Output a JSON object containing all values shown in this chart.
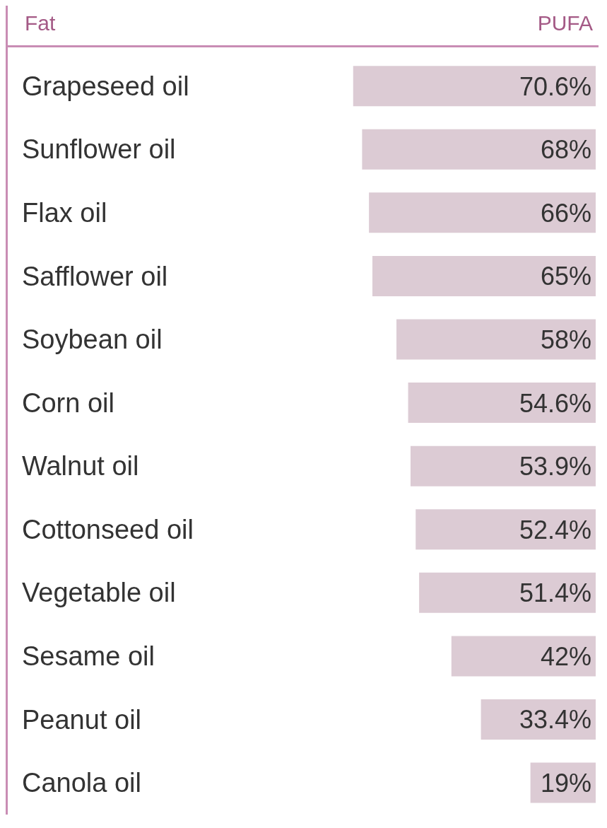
{
  "chart_data": {
    "type": "bar",
    "orientation": "horizontal",
    "ylabel": "Fat",
    "xlabel": "PUFA",
    "categories": [
      "Grapeseed oil",
      "Sunflower oil",
      "Flax oil",
      "Safflower oil",
      "Soybean oil",
      "Corn oil",
      "Walnut oil",
      "Cottonseed oil",
      "Vegetable oil",
      "Sesame oil",
      "Peanut oil",
      "Canola oil"
    ],
    "values": [
      70.6,
      68,
      66,
      65,
      58,
      54.6,
      53.9,
      52.4,
      51.4,
      42,
      33.4,
      19
    ],
    "value_labels": [
      "70.6%",
      "68%",
      "66%",
      "65%",
      "58%",
      "54.6%",
      "53.9%",
      "52.4%",
      "51.4%",
      "42%",
      "33.4%",
      "19%"
    ],
    "color": "#dccbd4",
    "tick_labels": "y"
  }
}
